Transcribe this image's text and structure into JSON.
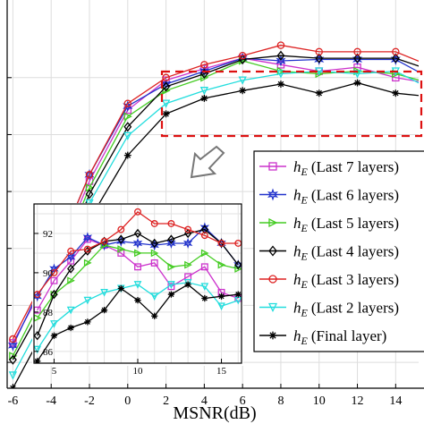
{
  "chart_data": {
    "type": "line",
    "xlabel": "MSNR(dB)",
    "ylabel": "",
    "x": [
      -6,
      -4,
      -2,
      0,
      2,
      4,
      6,
      8,
      10,
      12,
      14,
      16
    ],
    "xticks": [
      "-6",
      "-4",
      "-2",
      "0",
      "2",
      "4",
      "6",
      "8",
      "10",
      "12",
      "14"
    ],
    "xlim": [
      -6.3,
      15.2
    ],
    "ylim": [
      70,
      100
    ],
    "legend_position": "right",
    "series": [
      {
        "name": "(Last 7 layers)",
        "color": "#cc33cc",
        "marker": "square",
        "values": [
          73.5,
          79.0,
          86.0,
          91.5,
          93.8,
          94.7,
          95.5,
          95.0,
          94.5,
          94.8,
          94.0,
          93.5
        ]
      },
      {
        "name": "(Last 6 layers)",
        "color": "#2233cc",
        "marker": "star",
        "values": [
          73.3,
          79.5,
          86.5,
          91.8,
          93.5,
          94.5,
          95.5,
          95.3,
          95.4,
          95.4,
          95.4,
          93.8
        ]
      },
      {
        "name": "(Last 5 layers)",
        "color": "#44cc22",
        "marker": "triangle-right",
        "values": [
          72.5,
          78.3,
          85.5,
          91.0,
          93.0,
          94.0,
          95.3,
          94.5,
          94.3,
          94.5,
          94.3,
          93.5
        ]
      },
      {
        "name": "(Last 4 layers)",
        "color": "#000000",
        "marker": "diamond",
        "values": [
          72.2,
          77.5,
          85.0,
          90.2,
          93.3,
          94.3,
          95.4,
          95.7,
          95.5,
          95.5,
          95.5,
          94.5
        ]
      },
      {
        "name": "(Last 3 layers)",
        "color": "#dd2222",
        "marker": "circle",
        "values": [
          73.8,
          79.5,
          86.5,
          92.0,
          94.0,
          95.0,
          95.7,
          96.5,
          96.0,
          96.0,
          96.0,
          94.8
        ]
      },
      {
        "name": "(Last 2 layers)",
        "color": "#22dddd",
        "marker": "triangle-down",
        "values": [
          71.0,
          76.5,
          84.3,
          89.5,
          92.0,
          93.0,
          93.8,
          94.3,
          94.5,
          94.3,
          94.5,
          93.0
        ]
      },
      {
        "name": "(Final layer)",
        "color": "#000000",
        "marker": "asterisk",
        "values": [
          70.0,
          75.5,
          83.0,
          88.0,
          91.2,
          92.4,
          93.0,
          93.5,
          92.8,
          93.6,
          92.8,
          92.5
        ]
      }
    ],
    "inset": {
      "x": [
        4,
        5,
        6,
        7,
        8,
        9,
        10,
        11,
        12,
        13,
        14,
        15,
        16
      ],
      "xticks": [
        "5",
        "10",
        "15"
      ],
      "yticks": [
        "86",
        "88",
        "90",
        "92"
      ],
      "xlim": [
        3.8,
        16.2
      ],
      "ylim": [
        85.4,
        93.5
      ],
      "series": [
        {
          "values": [
            88.1,
            89.6,
            90.6,
            91.7,
            91.4,
            91.0,
            90.3,
            90.5,
            89.3,
            89.8,
            90.3,
            89.0,
            88.7
          ]
        },
        {
          "values": [
            88.8,
            90.2,
            90.8,
            91.8,
            91.4,
            91.6,
            91.5,
            91.4,
            91.5,
            91.5,
            92.3,
            91.5,
            90.4
          ]
        },
        {
          "values": [
            87.7,
            88.9,
            89.6,
            90.5,
            91.4,
            91.2,
            91.0,
            91.0,
            90.3,
            90.4,
            91.0,
            90.4,
            90.2
          ]
        },
        {
          "values": [
            86.8,
            88.9,
            90.2,
            91.1,
            91.6,
            91.7,
            92.0,
            91.5,
            91.7,
            92.0,
            92.2,
            91.5,
            90.4
          ]
        },
        {
          "values": [
            88.9,
            90.0,
            91.1,
            91.2,
            91.6,
            92.2,
            93.1,
            92.5,
            92.5,
            92.2,
            91.9,
            91.5,
            91.5
          ]
        },
        {
          "values": [
            86.1,
            87.4,
            88.1,
            88.6,
            89.0,
            89.2,
            89.4,
            88.8,
            89.4,
            89.5,
            89.3,
            88.3,
            88.6
          ]
        },
        {
          "values": [
            85.5,
            86.8,
            87.2,
            87.5,
            88.1,
            89.2,
            88.6,
            87.8,
            88.9,
            89.4,
            88.7,
            88.8,
            88.9
          ]
        }
      ]
    }
  },
  "legend": {
    "symbol_base": "h",
    "symbol_sub": "E"
  }
}
